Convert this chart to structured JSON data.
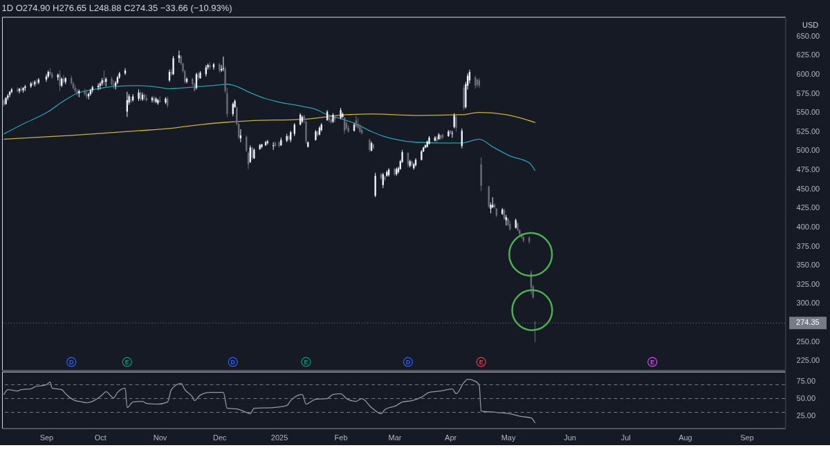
{
  "chart_data": [
    {
      "type": "candlestick",
      "title": "1D O274.90 H276.65 L248.88 C274.35 −33.66 (−10.93%)",
      "ylabel": "USD",
      "x": [
        "2024-08-12",
        "2024-08-13",
        "2024-08-14",
        "2024-08-15",
        "2024-08-16",
        "2024-08-19",
        "2024-08-20",
        "2024-08-21",
        "2024-08-22",
        "2024-08-23",
        "2024-08-26",
        "2024-08-27",
        "2024-08-28",
        "2024-08-29",
        "2024-08-30",
        "2024-09-03",
        "2024-09-04",
        "2024-09-05",
        "2024-09-06",
        "2024-09-09",
        "2024-09-10",
        "2024-09-11",
        "2024-09-12",
        "2024-09-13",
        "2024-09-16",
        "2024-09-17",
        "2024-09-18",
        "2024-09-19",
        "2024-09-20",
        "2024-09-23",
        "2024-09-24",
        "2024-09-25",
        "2024-09-26",
        "2024-09-27",
        "2024-09-30",
        "2024-10-01",
        "2024-10-02",
        "2024-10-03",
        "2024-10-04",
        "2024-10-07",
        "2024-10-08",
        "2024-10-09",
        "2024-10-10",
        "2024-10-11",
        "2024-10-14",
        "2024-10-15",
        "2024-10-16",
        "2024-10-17",
        "2024-10-18",
        "2024-10-21",
        "2024-10-22",
        "2024-10-23",
        "2024-10-24",
        "2024-10-25",
        "2024-10-28",
        "2024-10-29",
        "2024-10-30",
        "2024-10-31",
        "2024-11-01",
        "2024-11-04",
        "2024-11-05",
        "2024-11-06",
        "2024-11-07",
        "2024-11-08",
        "2024-11-11",
        "2024-11-12",
        "2024-11-13",
        "2024-11-14",
        "2024-11-15",
        "2024-11-18",
        "2024-11-19",
        "2024-11-20",
        "2024-11-21",
        "2024-11-22",
        "2024-11-25",
        "2024-11-26",
        "2024-11-27",
        "2024-11-29",
        "2024-12-02",
        "2024-12-03",
        "2024-12-04",
        "2024-12-05",
        "2024-12-06",
        "2024-12-09",
        "2024-12-10",
        "2024-12-11",
        "2024-12-12",
        "2024-12-13",
        "2024-12-16",
        "2024-12-17",
        "2024-12-18",
        "2024-12-19",
        "2024-12-20",
        "2024-12-23",
        "2024-12-24",
        "2024-12-26",
        "2024-12-27",
        "2024-12-30",
        "2024-12-31",
        "2025-01-02",
        "2025-01-03",
        "2025-01-06",
        "2025-01-07",
        "2025-01-08",
        "2025-01-10",
        "2025-01-13",
        "2025-01-14",
        "2025-01-15",
        "2025-01-16",
        "2025-01-17",
        "2025-01-21",
        "2025-01-22",
        "2025-01-23",
        "2025-01-24",
        "2025-01-27",
        "2025-01-28",
        "2025-01-29",
        "2025-01-30",
        "2025-01-31",
        "2025-02-03",
        "2025-02-04",
        "2025-02-05",
        "2025-02-06",
        "2025-02-07",
        "2025-02-10",
        "2025-02-11",
        "2025-02-12",
        "2025-02-13",
        "2025-02-14",
        "2025-02-18",
        "2025-02-19",
        "2025-02-20",
        "2025-02-21",
        "2025-02-24",
        "2025-02-25",
        "2025-02-26",
        "2025-02-27",
        "2025-02-28",
        "2025-03-03",
        "2025-03-04",
        "2025-03-05",
        "2025-03-06",
        "2025-03-07",
        "2025-03-10",
        "2025-03-11",
        "2025-03-12",
        "2025-03-13",
        "2025-03-14",
        "2025-03-17",
        "2025-03-18",
        "2025-03-19",
        "2025-03-20",
        "2025-03-21",
        "2025-03-24",
        "2025-03-25",
        "2025-03-26",
        "2025-03-27",
        "2025-03-28",
        "2025-03-31",
        "2025-04-01",
        "2025-04-02",
        "2025-04-03",
        "2025-04-04",
        "2025-04-07",
        "2025-04-08",
        "2025-04-09",
        "2025-04-10",
        "2025-04-11",
        "2025-04-14",
        "2025-04-15",
        "2025-04-16",
        "2025-04-17",
        "2025-04-21",
        "2025-04-22",
        "2025-04-23",
        "2025-04-24",
        "2025-04-25",
        "2025-04-28",
        "2025-04-29",
        "2025-04-30",
        "2025-05-01",
        "2025-05-02",
        "2025-05-05",
        "2025-05-06",
        "2025-05-07",
        "2025-05-08",
        "2025-05-09",
        "2025-05-12",
        "2025-05-13",
        "2025-05-14",
        "2025-05-15"
      ],
      "ohlc": [
        [
          566,
          568,
          558,
          560
        ],
        [
          561,
          570,
          560,
          569
        ],
        [
          569,
          574,
          566,
          572
        ],
        [
          573,
          578,
          570,
          577
        ],
        [
          577,
          582,
          575,
          580
        ],
        [
          580,
          583,
          576,
          578
        ],
        [
          578,
          582,
          575,
          581
        ],
        [
          581,
          584,
          577,
          579
        ],
        [
          579,
          583,
          576,
          582
        ],
        [
          582,
          586,
          578,
          584
        ],
        [
          584,
          590,
          582,
          588
        ],
        [
          588,
          591,
          585,
          587
        ],
        [
          587,
          592,
          584,
          590
        ],
        [
          590,
          594,
          586,
          589
        ],
        [
          589,
          595,
          587,
          593
        ],
        [
          593,
          600,
          590,
          597
        ],
        [
          597,
          605,
          595,
          603
        ],
        [
          603,
          608,
          598,
          600
        ],
        [
          600,
          603,
          594,
          596
        ],
        [
          596,
          601,
          592,
          599
        ],
        [
          600,
          605,
          578,
          585
        ],
        [
          585,
          596,
          583,
          594
        ],
        [
          594,
          599,
          588,
          590
        ],
        [
          590,
          596,
          587,
          595
        ],
        [
          595,
          598,
          586,
          588
        ],
        [
          588,
          590,
          580,
          582
        ],
        [
          582,
          586,
          576,
          578
        ],
        [
          578,
          581,
          572,
          575
        ],
        [
          575,
          580,
          570,
          578
        ],
        [
          578,
          581,
          572,
          574
        ],
        [
          574,
          578,
          568,
          571
        ],
        [
          571,
          576,
          567,
          574
        ],
        [
          574,
          581,
          572,
          579
        ],
        [
          579,
          585,
          576,
          583
        ],
        [
          583,
          588,
          579,
          585
        ],
        [
          585,
          590,
          580,
          588
        ],
        [
          588,
          595,
          585,
          592
        ],
        [
          592,
          605,
          586,
          590
        ],
        [
          590,
          596,
          584,
          594
        ],
        [
          594,
          597,
          585,
          587
        ],
        [
          587,
          592,
          581,
          585
        ],
        [
          585,
          591,
          580,
          589
        ],
        [
          589,
          598,
          587,
          596
        ],
        [
          596,
          603,
          594,
          601
        ],
        [
          601,
          608,
          599,
          605
        ],
        [
          551,
          577,
          544,
          566
        ],
        [
          563,
          574,
          560,
          571
        ],
        [
          567,
          571,
          562,
          565
        ],
        [
          566,
          574,
          564,
          571
        ],
        [
          568,
          580,
          565,
          576
        ],
        [
          576,
          578,
          565,
          567
        ],
        [
          567,
          576,
          565,
          573
        ],
        [
          573,
          575,
          566,
          569
        ],
        [
          569,
          573,
          564,
          566
        ],
        [
          566,
          571,
          563,
          569
        ],
        [
          569,
          572,
          562,
          564
        ],
        [
          564,
          570,
          562,
          568
        ],
        [
          562,
          568,
          560,
          566
        ],
        [
          566,
          571,
          563,
          564
        ],
        [
          563,
          570,
          561,
          568
        ],
        [
          568,
          571,
          556,
          559
        ],
        [
          592,
          606,
          590,
          603
        ],
        [
          603,
          607,
          598,
          600
        ],
        [
          600,
          624,
          599,
          621
        ],
        [
          621,
          631,
          615,
          625
        ],
        [
          624,
          625,
          612,
          614
        ],
        [
          614,
          615,
          602,
          604
        ],
        [
          604,
          606,
          588,
          590
        ],
        [
          590,
          596,
          588,
          594
        ],
        [
          594,
          595,
          585,
          587
        ],
        [
          587,
          589,
          577,
          579
        ],
        [
          582,
          602,
          580,
          600
        ],
        [
          600,
          603,
          592,
          595
        ],
        [
          595,
          604,
          594,
          602
        ],
        [
          600,
          612,
          597,
          609
        ],
        [
          609,
          614,
          606,
          612
        ],
        [
          612,
          616,
          606,
          609
        ],
        [
          609,
          615,
          606,
          613
        ],
        [
          613,
          615,
          602,
          605
        ],
        [
          605,
          612,
          603,
          607
        ],
        [
          607,
          623,
          604,
          608
        ],
        [
          607,
          610,
          575,
          578
        ],
        [
          575,
          582,
          544,
          548
        ],
        [
          548,
          563,
          545,
          561
        ],
        [
          557,
          567,
          556,
          565
        ],
        [
          556,
          558,
          533,
          535
        ],
        [
          535,
          536,
          515,
          518
        ],
        [
          516,
          528,
          511,
          520
        ],
        [
          518,
          520,
          498,
          500
        ],
        [
          497,
          499,
          476,
          482
        ],
        [
          485,
          507,
          484,
          504
        ],
        [
          504,
          505,
          488,
          491
        ],
        [
          490,
          503,
          489,
          501
        ],
        [
          502,
          509,
          501,
          507
        ],
        [
          505,
          509,
          503,
          508
        ],
        [
          507,
          513,
          506,
          511
        ],
        [
          510,
          514,
          508,
          512
        ],
        [
          506,
          511,
          501,
          507
        ],
        [
          510,
          512,
          505,
          506
        ],
        [
          511,
          512,
          504,
          506
        ],
        [
          507,
          517,
          506,
          514
        ],
        [
          513,
          522,
          511,
          519
        ],
        [
          519,
          520,
          513,
          515
        ],
        [
          514,
          526,
          511,
          524
        ],
        [
          522,
          536,
          519,
          534
        ],
        [
          534,
          549,
          533,
          547
        ],
        [
          538,
          546,
          536,
          544
        ],
        [
          545,
          547,
          536,
          540
        ],
        [
          538,
          540,
          509,
          512
        ],
        [
          505,
          512,
          504,
          511
        ],
        [
          514,
          527,
          513,
          525
        ],
        [
          525,
          526,
          518,
          520
        ],
        [
          521,
          532,
          520,
          530
        ],
        [
          527,
          536,
          525,
          534
        ],
        [
          540,
          553,
          539,
          551
        ],
        [
          546,
          547,
          537,
          540
        ],
        [
          541,
          544,
          535,
          537
        ],
        [
          538,
          549,
          536,
          547
        ],
        [
          546,
          547,
          537,
          541
        ],
        [
          543,
          556,
          541,
          553
        ],
        [
          544,
          550,
          543,
          548
        ],
        [
          543,
          544,
          522,
          526
        ],
        [
          536,
          539,
          527,
          529
        ],
        [
          530,
          533,
          523,
          525
        ],
        [
          526,
          536,
          525,
          534
        ],
        [
          540,
          546,
          530,
          532
        ],
        [
          535,
          543,
          528,
          530
        ],
        [
          531,
          535,
          523,
          525
        ],
        [
          527,
          530,
          521,
          523
        ],
        [
          514,
          516,
          498,
          501
        ],
        [
          500,
          512,
          499,
          510
        ],
        [
          508,
          509,
          502,
          503
        ],
        [
          441,
          471,
          439,
          467
        ],
        [
          469,
          471,
          462,
          464
        ],
        [
          455,
          471,
          451,
          469
        ],
        [
          466,
          467,
          460,
          462
        ],
        [
          467,
          474,
          466,
          472
        ],
        [
          468,
          477,
          466,
          475
        ],
        [
          476,
          477,
          467,
          469
        ],
        [
          469,
          478,
          467,
          476
        ],
        [
          472,
          479,
          470,
          477
        ],
        [
          476,
          488,
          475,
          486
        ],
        [
          485,
          501,
          484,
          498
        ],
        [
          497,
          498,
          478,
          482
        ],
        [
          480,
          488,
          478,
          486
        ],
        [
          486,
          487,
          479,
          481
        ],
        [
          477,
          484,
          475,
          482
        ],
        [
          481,
          490,
          479,
          488
        ],
        [
          488,
          501,
          487,
          499
        ],
        [
          499,
          505,
          498,
          504
        ],
        [
          504,
          508,
          503,
          507
        ],
        [
          505,
          513,
          504,
          512
        ],
        [
          509,
          519,
          508,
          517
        ],
        [
          513,
          519,
          512,
          517
        ],
        [
          518,
          519,
          511,
          513
        ],
        [
          515,
          523,
          514,
          521
        ],
        [
          520,
          521,
          514,
          516
        ],
        [
          521,
          522,
          515,
          517
        ],
        [
          519,
          527,
          518,
          525
        ],
        [
          526,
          527,
          521,
          523
        ],
        [
          522,
          526,
          517,
          523
        ],
        [
          531,
          549,
          529,
          546
        ],
        [
          544,
          546,
          525,
          530
        ],
        [
          506,
          529,
          503,
          526
        ],
        [
          582,
          586,
          553,
          556
        ],
        [
          557,
          590,
          555,
          587
        ],
        [
          585,
          601,
          580,
          598
        ],
        [
          592,
          606,
          588,
          603
        ],
        [
          596,
          598,
          581,
          585
        ],
        [
          593,
          594,
          583,
          586
        ],
        [
          592,
          595,
          582,
          585
        ],
        [
          482,
          491,
          447,
          454
        ],
        [
          453,
          454,
          425,
          427
        ],
        [
          424,
          432,
          418,
          429
        ],
        [
          426,
          439,
          425,
          429
        ],
        [
          429,
          431,
          424,
          426
        ],
        [
          424,
          425,
          413,
          415
        ],
        [
          417,
          425,
          416,
          423
        ],
        [
          422,
          424,
          409,
          411
        ],
        [
          409,
          416,
          402,
          413
        ],
        [
          411,
          412,
          401,
          403
        ],
        [
          404,
          408,
          395,
          397
        ],
        [
          399,
          411,
          398,
          409
        ],
        [
          405,
          406,
          395,
          396
        ],
        [
          396,
          397,
          389,
          391
        ],
        [
          390,
          392,
          385,
          387
        ],
        [
          387,
          388,
          380,
          382
        ],
        [
          386,
          388,
          378,
          381
        ],
        [
          340,
          343,
          312,
          321
        ],
        [
          322,
          324,
          306,
          308
        ],
        [
          274.9,
          276.65,
          248.88,
          274.35
        ]
      ],
      "colors": [
        "#6a6d78",
        "#f0f3fa",
        "#f0f3fa",
        "#f0f3fa",
        "#f0f3fa",
        "#6a6d78",
        "#f0f3fa",
        "#6a6d78",
        "#f0f3fa",
        "#f0f3fa",
        "#f0f3fa",
        "#6a6d78",
        "#f0f3fa",
        "#6a6d78",
        "#f0f3fa",
        "#f0f3fa",
        "#f0f3fa",
        "#6a6d78",
        "#6a6d78",
        "#f0f3fa",
        "#6a6d78",
        "#f0f3fa",
        "#6a6d78",
        "#f0f3fa",
        "#6a6d78",
        "#6a6d78",
        "#6a6d78",
        "#6a6d78",
        "#f0f3fa",
        "#6a6d78",
        "#6a6d78",
        "#f0f3fa",
        "#f0f3fa",
        "#f0f3fa",
        "#f0f3fa",
        "#f0f3fa",
        "#f0f3fa",
        "#6a6d78",
        "#f0f3fa",
        "#6a6d78",
        "#6a6d78",
        "#f0f3fa",
        "#f0f3fa",
        "#f0f3fa",
        "#f0f3fa",
        "#f0f3fa",
        "#f0f3fa",
        "#6a6d78",
        "#f0f3fa",
        "#f0f3fa",
        "#6a6d78",
        "#f0f3fa",
        "#6a6d78",
        "#6a6d78",
        "#f0f3fa",
        "#6a6d78",
        "#f0f3fa",
        "#f0f3fa",
        "#6a6d78",
        "#f0f3fa",
        "#6a6d78",
        "#f0f3fa",
        "#6a6d78",
        "#f0f3fa",
        "#f0f3fa",
        "#6a6d78",
        "#6a6d78",
        "#6a6d78",
        "#f0f3fa",
        "#6a6d78",
        "#6a6d78",
        "#f0f3fa",
        "#6a6d78",
        "#f0f3fa",
        "#f0f3fa",
        "#f0f3fa",
        "#6a6d78",
        "#f0f3fa",
        "#6a6d78",
        "#f0f3fa",
        "#f0f3fa",
        "#6a6d78",
        "#6a6d78",
        "#f0f3fa",
        "#f0f3fa",
        "#6a6d78",
        "#6a6d78",
        "#f0f3fa",
        "#6a6d78",
        "#6a6d78",
        "#f0f3fa",
        "#6a6d78",
        "#f0f3fa",
        "#f0f3fa",
        "#f0f3fa",
        "#f0f3fa",
        "#f0f3fa",
        "#f0f3fa",
        "#6a6d78",
        "#6a6d78",
        "#f0f3fa",
        "#f0f3fa",
        "#6a6d78",
        "#f0f3fa",
        "#f0f3fa",
        "#f0f3fa",
        "#f0f3fa",
        "#6a6d78",
        "#6a6d78",
        "#f0f3fa",
        "#f0f3fa",
        "#6a6d78",
        "#f0f3fa",
        "#f0f3fa",
        "#f0f3fa",
        "#6a6d78",
        "#6a6d78",
        "#f0f3fa",
        "#6a6d78",
        "#f0f3fa",
        "#f0f3fa",
        "#6a6d78",
        "#6a6d78",
        "#6a6d78",
        "#f0f3fa",
        "#6a6d78",
        "#6a6d78",
        "#6a6d78",
        "#6a6d78",
        "#6a6d78",
        "#f0f3fa",
        "#6a6d78",
        "#f0f3fa",
        "#6a6d78",
        "#f0f3fa",
        "#6a6d78",
        "#f0f3fa",
        "#f0f3fa",
        "#6a6d78",
        "#f0f3fa",
        "#f0f3fa",
        "#f0f3fa",
        "#f0f3fa",
        "#6a6d78",
        "#f0f3fa",
        "#6a6d78",
        "#f0f3fa",
        "#f0f3fa",
        "#f0f3fa",
        "#f0f3fa",
        "#f0f3fa",
        "#f0f3fa",
        "#f0f3fa",
        "#f0f3fa",
        "#6a6d78",
        "#f0f3fa",
        "#6a6d78",
        "#6a6d78",
        "#f0f3fa",
        "#6a6d78",
        "#f0f3fa",
        "#f0f3fa",
        "#6a6d78",
        "#f0f3fa",
        "#6a6d78",
        "#f0f3fa",
        "#f0f3fa",
        "#f0f3fa",
        "#6a6d78",
        "#6a6d78",
        "#6a6d78",
        "#6a6d78",
        "#6a6d78",
        "#f0f3fa",
        "#f0f3fa",
        "#6a6d78",
        "#6a6d78",
        "#f0f3fa",
        "#6a6d78",
        "#f0f3fa",
        "#6a6d78",
        "#6a6d78",
        "#f0f3fa",
        "#6a6d78",
        "#6a6d78",
        "#6a6d78",
        "#6a6d78",
        "#6a6d78",
        "#6a6d78",
        "#6a6d78",
        "#6a6d78"
      ],
      "series": [
        {
          "type": "line",
          "color": "#26a1b6",
          "x": [
            "2024-08-12",
            "2024-08-22",
            "2024-09-04",
            "2024-09-12",
            "2024-09-19",
            "2024-09-30",
            "2024-10-08",
            "2024-10-21",
            "2024-10-31",
            "2024-11-06",
            "2024-11-12",
            "2024-11-22",
            "2024-12-02",
            "2024-12-06",
            "2024-12-11",
            "2024-12-17",
            "2024-12-26",
            "2025-01-03",
            "2025-01-14",
            "2025-01-21",
            "2025-01-27",
            "2025-02-03",
            "2025-02-10",
            "2025-02-19",
            "2025-02-25",
            "2025-03-03",
            "2025-03-14",
            "2025-03-27",
            "2025-04-07",
            "2025-04-16",
            "2025-04-23",
            "2025-05-02",
            "2025-05-12",
            "2025-05-15"
          ],
          "values": [
            522,
            535,
            551,
            565,
            575,
            581,
            584,
            585,
            583,
            581,
            582,
            584,
            586,
            587,
            584,
            577,
            568,
            563,
            558,
            554,
            547,
            542,
            536,
            525,
            519,
            515,
            511,
            510,
            510,
            515,
            505,
            493,
            484,
            474
          ]
        },
        {
          "type": "line",
          "color": "#c9b33b",
          "x": [
            "2024-08-12",
            "2024-09-16",
            "2024-10-21",
            "2024-11-06",
            "2024-11-22",
            "2024-12-05",
            "2024-12-17",
            "2025-01-14",
            "2025-02-06",
            "2025-02-19",
            "2025-03-14",
            "2025-04-07",
            "2025-04-16",
            "2025-04-30",
            "2025-05-15"
          ],
          "values": [
            515,
            520,
            526,
            529,
            534,
            537,
            539,
            541,
            547,
            548,
            546,
            547,
            550,
            547,
            537
          ]
        }
      ],
      "xlim": [
        "2024-08-11",
        "2025-09-22"
      ],
      "ylim": [
        212.5,
        675
      ],
      "yticks": [
        {
          "value": 225,
          "label": "225.00"
        },
        {
          "value": 250,
          "label": "250.00"
        },
        {
          "value": 300,
          "label": "300.00"
        },
        {
          "value": 325,
          "label": "325.00"
        },
        {
          "value": 350,
          "label": "350.00"
        },
        {
          "value": 375,
          "label": "375.00"
        },
        {
          "value": 400,
          "label": "400.00"
        },
        {
          "value": 425,
          "label": "425.00"
        },
        {
          "value": 450,
          "label": "450.00"
        },
        {
          "value": 475,
          "label": "475.00"
        },
        {
          "value": 500,
          "label": "500.00"
        },
        {
          "value": 525,
          "label": "525.00"
        },
        {
          "value": 550,
          "label": "550.00"
        },
        {
          "value": 575,
          "label": "575.00"
        },
        {
          "value": 600,
          "label": "600.00"
        },
        {
          "value": 625,
          "label": "625.00"
        },
        {
          "value": 650,
          "label": "650.00"
        }
      ],
      "tick_labels": "y",
      "ref_lines": [
        {
          "axis": "y",
          "value": 274.35,
          "label": "274.35",
          "line_style": "dotted",
          "color": "#787b86"
        }
      ],
      "annotations": [
        "D",
        "E",
        "D",
        "E",
        "D",
        "E",
        "E"
      ]
    },
    {
      "type": "line",
      "x": [
        "2024-08-12",
        "2024-08-14",
        "2024-08-19",
        "2024-08-21",
        "2024-08-26",
        "2024-08-28",
        "2024-09-03",
        "2024-09-05",
        "2024-09-06",
        "2024-09-11",
        "2024-09-13",
        "2024-09-18",
        "2024-09-20",
        "2024-09-24",
        "2024-09-27",
        "2024-10-02",
        "2024-10-04",
        "2024-10-08",
        "2024-10-10",
        "2024-10-14",
        "2024-10-15",
        "2024-10-18",
        "2024-10-23",
        "2024-10-25",
        "2024-10-31",
        "2024-11-05",
        "2024-11-07",
        "2024-11-12",
        "2024-11-14",
        "2024-11-18",
        "2024-11-19",
        "2024-11-22",
        "2024-11-27",
        "2024-12-04",
        "2024-12-06",
        "2024-12-11",
        "2024-12-16",
        "2024-12-18",
        "2024-12-20",
        "2024-12-30",
        "2025-01-06",
        "2025-01-08",
        "2025-01-14",
        "2025-01-16",
        "2025-01-21",
        "2025-01-27",
        "2025-01-30",
        "2025-02-03",
        "2025-02-06",
        "2025-02-11",
        "2025-02-14",
        "2025-02-19",
        "2025-02-24",
        "2025-02-26",
        "2025-03-04",
        "2025-03-07",
        "2025-03-12",
        "2025-03-17",
        "2025-03-21",
        "2025-03-27",
        "2025-04-02",
        "2025-04-04",
        "2025-04-08",
        "2025-04-10",
        "2025-04-14",
        "2025-04-16",
        "2025-04-17",
        "2025-04-25",
        "2025-05-02",
        "2025-05-08",
        "2025-05-13",
        "2025-05-15"
      ],
      "series": [
        {
          "color": "#9598a1",
          "values": [
            56,
            63,
            61,
            63,
            64,
            67,
            70,
            74,
            65,
            63,
            57,
            47,
            46,
            44,
            46,
            55,
            60,
            51,
            59,
            65,
            37,
            45,
            46,
            43,
            42,
            45,
            63,
            72,
            63,
            52,
            47,
            55,
            59,
            59,
            36,
            35,
            30,
            28,
            36,
            37,
            40,
            47,
            56,
            42,
            49,
            50,
            56,
            57,
            50,
            46,
            50,
            37,
            28,
            34,
            40,
            45,
            47,
            52,
            59,
            61,
            64,
            57,
            73,
            78,
            75,
            70,
            32,
            30,
            28,
            24,
            22,
            15
          ]
        }
      ],
      "xlim": [
        "2024-08-11",
        "2025-09-22"
      ],
      "xticks": [
        {
          "value": "2024-09-03",
          "label": "Sep"
        },
        {
          "value": "2024-10-01",
          "label": "Oct"
        },
        {
          "value": "2024-11-01",
          "label": "Nov"
        },
        {
          "value": "2024-12-02",
          "label": "Dec"
        },
        {
          "value": "2025-01-02",
          "label": "2025"
        },
        {
          "value": "2025-02-03",
          "label": "Feb"
        },
        {
          "value": "2025-03-03",
          "label": "Mar"
        },
        {
          "value": "2025-04-01",
          "label": "Apr"
        },
        {
          "value": "2025-05-01",
          "label": "May"
        },
        {
          "value": "2025-06-02",
          "label": "Jun"
        },
        {
          "value": "2025-07-01",
          "label": "Jul"
        },
        {
          "value": "2025-08-01",
          "label": "Aug"
        },
        {
          "value": "2025-09-02",
          "label": "Sep"
        }
      ],
      "ylim": [
        7,
        89
      ],
      "yticks": [
        {
          "value": 25,
          "label": "25.00"
        },
        {
          "value": 50,
          "label": "50.00"
        },
        {
          "value": 75,
          "label": "75.00"
        }
      ],
      "ref_lines": [
        {
          "axis": "y",
          "value": 70,
          "line_style": "dashed",
          "color": "#787b86"
        },
        {
          "axis": "y",
          "value": 50,
          "line_style": "dashed",
          "color": "#787b86"
        },
        {
          "axis": "y",
          "value": 30,
          "line_style": "dashed",
          "color": "#787b86"
        }
      ]
    }
  ]
}
